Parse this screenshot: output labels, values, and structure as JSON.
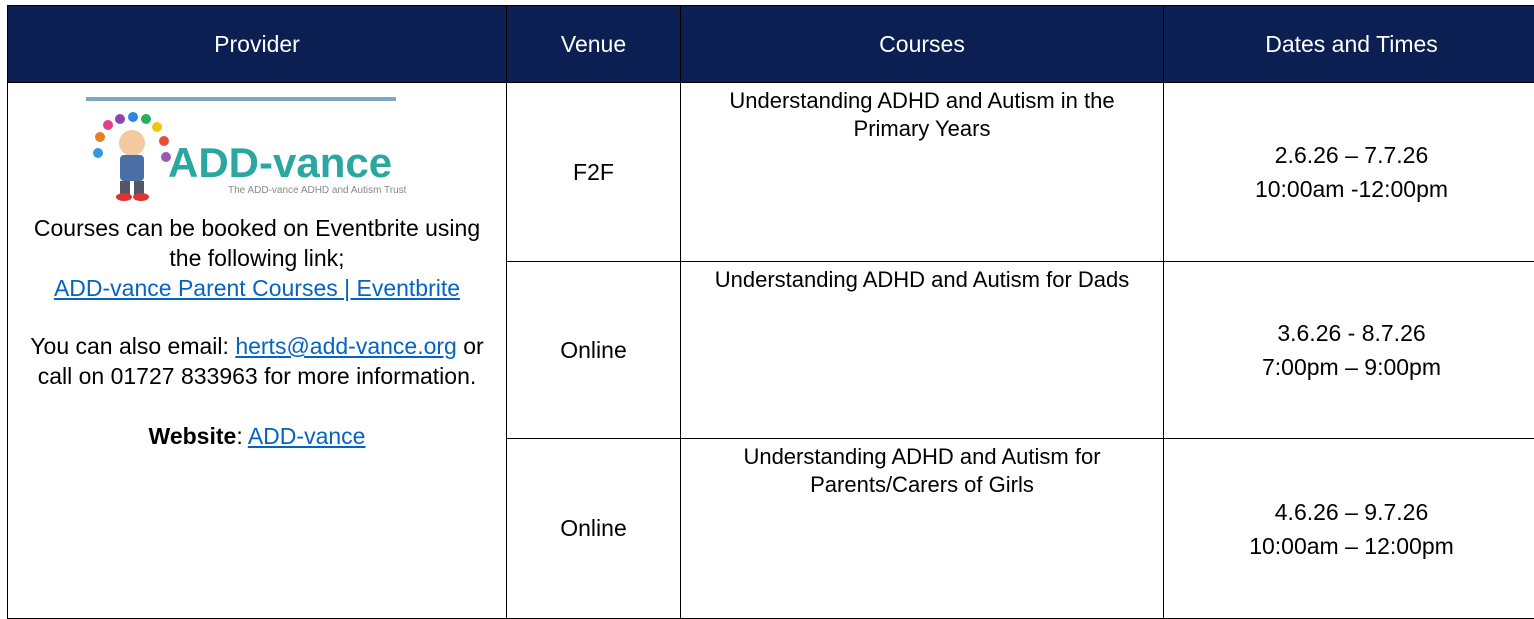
{
  "header": [
    "Provider",
    "Venue",
    "Courses",
    "Dates and Times"
  ],
  "provider": {
    "logo_title": "ADD-vance",
    "logo_tagline": "The ADD-vance ADHD and Autism Trust",
    "booking_text": "Courses can be booked on Eventbrite using the following link;",
    "booking_link": "ADD-vance Parent Courses | Eventbrite",
    "email_prefix": "You can also email:",
    "email_link": "herts@add-vance.org",
    "email_suffix": "or call on 01727 833963 for more information.",
    "website_label": "Website",
    "website_separator": ":",
    "website_link": "ADD-vance"
  },
  "rows": [
    {
      "venue": "F2F",
      "course": "Understanding ADHD and Autism in the Primary Years",
      "dates": [
        "2.6.26 – 7.7.26",
        "10:00am -12:00pm"
      ]
    },
    {
      "venue": "Online",
      "course": "Understanding ADHD and Autism for Dads",
      "dates": [
        "3.6.26 - 8.7.26",
        "7:00pm – 9:00pm"
      ]
    },
    {
      "venue": "Online",
      "course": "Understanding ADHD and Autism for Parents/Carers of Girls",
      "dates": [
        "4.6.26 – 9.7.26",
        "10:00am – 12:00pm"
      ]
    }
  ]
}
